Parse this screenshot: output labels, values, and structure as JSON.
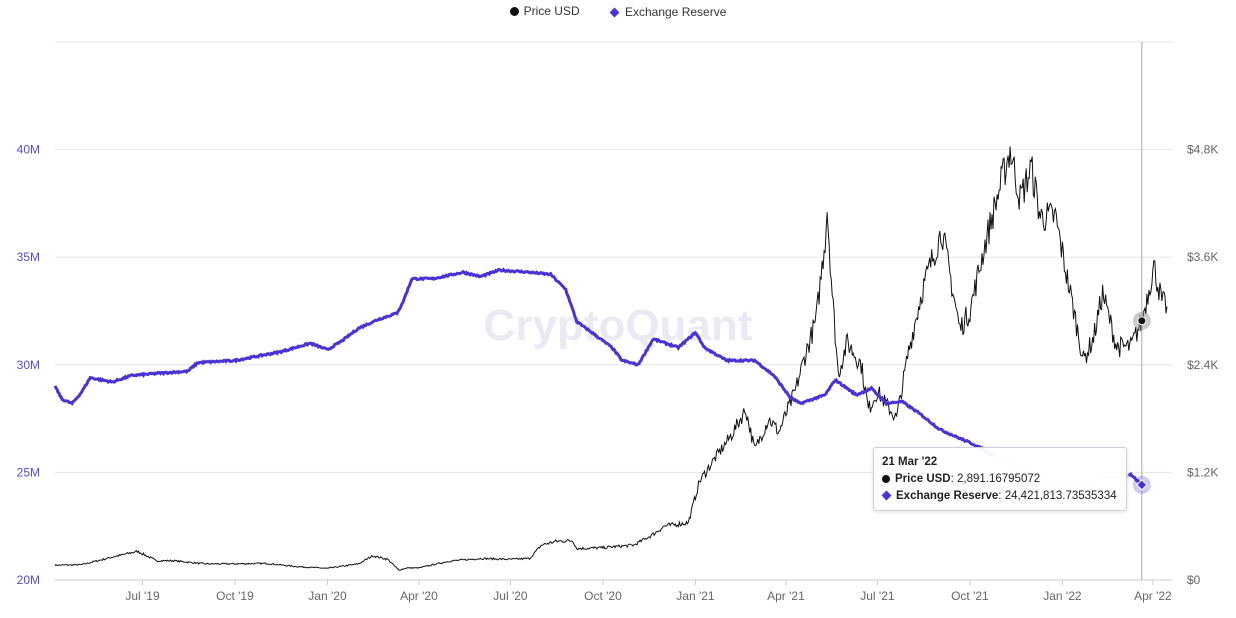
{
  "legend": {
    "price_label": "Price USD",
    "reserve_label": "Exchange Reserve"
  },
  "watermark": "CryptoQuant",
  "tooltip": {
    "date": "21 Mar '22",
    "price_label": "Price USD",
    "price_value": "2,891.16795072",
    "reserve_label": "Exchange Reserve",
    "reserve_value": "24,421,813.73535334"
  },
  "colors": {
    "price": "#111111",
    "reserve": "#4a33d6",
    "left_axis_text": "#5b4bd6",
    "grid": "#e6e6e6"
  },
  "chart_data": {
    "type": "line",
    "x_ticks": [
      "Jul '19",
      "Oct '19",
      "Jan '20",
      "Apr '20",
      "Jul '20",
      "Oct '20",
      "Jan '21",
      "Apr '21",
      "Jul '21",
      "Oct '21",
      "Jan '22",
      "Apr '22"
    ],
    "y_left_ticks": [
      "20M",
      "25M",
      "30M",
      "35M",
      "40M"
    ],
    "y_right_ticks": [
      "$0",
      "$1.2K",
      "$2.4K",
      "$3.6K",
      "$4.8K"
    ],
    "y_left_range": [
      20000000,
      45000000
    ],
    "y_right_range": [
      0,
      6000
    ],
    "x_range": [
      "2019-04-05",
      "2022-04-20"
    ],
    "grid": true,
    "legend_position": "top-center",
    "series": [
      {
        "name": "Price USD",
        "axis": "right",
        "points": [
          [
            "2019-04-05",
            165
          ],
          [
            "2019-05-01",
            170
          ],
          [
            "2019-06-01",
            255
          ],
          [
            "2019-06-26",
            320
          ],
          [
            "2019-07-15",
            215
          ],
          [
            "2019-08-01",
            215
          ],
          [
            "2019-09-01",
            180
          ],
          [
            "2019-10-01",
            180
          ],
          [
            "2019-11-01",
            185
          ],
          [
            "2019-12-01",
            150
          ],
          [
            "2020-01-01",
            130
          ],
          [
            "2020-02-01",
            180
          ],
          [
            "2020-02-15",
            270
          ],
          [
            "2020-03-01",
            230
          ],
          [
            "2020-03-12",
            110
          ],
          [
            "2020-03-20",
            135
          ],
          [
            "2020-04-01",
            135
          ],
          [
            "2020-05-01",
            210
          ],
          [
            "2020-06-01",
            240
          ],
          [
            "2020-07-01",
            230
          ],
          [
            "2020-07-20",
            240
          ],
          [
            "2020-08-01",
            390
          ],
          [
            "2020-08-15",
            430
          ],
          [
            "2020-09-01",
            440
          ],
          [
            "2020-09-05",
            350
          ],
          [
            "2020-10-01",
            360
          ],
          [
            "2020-11-01",
            390
          ],
          [
            "2020-11-20",
            510
          ],
          [
            "2020-12-01",
            600
          ],
          [
            "2020-12-25",
            640
          ],
          [
            "2021-01-05",
            1100
          ],
          [
            "2021-01-20",
            1350
          ],
          [
            "2021-02-05",
            1600
          ],
          [
            "2021-02-20",
            1900
          ],
          [
            "2021-03-01",
            1450
          ],
          [
            "2021-03-15",
            1800
          ],
          [
            "2021-03-25",
            1650
          ],
          [
            "2021-04-10",
            2100
          ],
          [
            "2021-04-20",
            2500
          ],
          [
            "2021-05-01",
            2900
          ],
          [
            "2021-05-10",
            3800
          ],
          [
            "2021-05-12",
            4150
          ],
          [
            "2021-05-17",
            3200
          ],
          [
            "2021-05-23",
            2300
          ],
          [
            "2021-06-01",
            2650
          ],
          [
            "2021-06-15",
            2400
          ],
          [
            "2021-06-22",
            1900
          ],
          [
            "2021-07-01",
            2100
          ],
          [
            "2021-07-20",
            1800
          ],
          [
            "2021-08-01",
            2550
          ],
          [
            "2021-08-15",
            3250
          ],
          [
            "2021-09-03",
            3900
          ],
          [
            "2021-09-21",
            2800
          ],
          [
            "2021-10-01",
            3000
          ],
          [
            "2021-10-15",
            3700
          ],
          [
            "2021-10-29",
            4300
          ],
          [
            "2021-11-10",
            4800
          ],
          [
            "2021-11-20",
            4250
          ],
          [
            "2021-12-01",
            4600
          ],
          [
            "2021-12-10",
            4050
          ],
          [
            "2021-12-25",
            4050
          ],
          [
            "2022-01-07",
            3300
          ],
          [
            "2022-01-22",
            2450
          ],
          [
            "2022-02-01",
            2700
          ],
          [
            "2022-02-10",
            3200
          ],
          [
            "2022-02-24",
            2600
          ],
          [
            "2022-03-10",
            2600
          ],
          [
            "2022-03-21",
            2891
          ],
          [
            "2022-04-02",
            3500
          ],
          [
            "2022-04-10",
            3100
          ],
          [
            "2022-04-15",
            3050
          ]
        ]
      },
      {
        "name": "Exchange Reserve",
        "axis": "left",
        "points": [
          [
            "2019-04-05",
            29.0
          ],
          [
            "2019-04-12",
            28.4
          ],
          [
            "2019-04-22",
            28.2
          ],
          [
            "2019-05-01",
            28.7
          ],
          [
            "2019-05-10",
            29.4
          ],
          [
            "2019-06-01",
            29.2
          ],
          [
            "2019-06-20",
            29.5
          ],
          [
            "2019-07-15",
            29.6
          ],
          [
            "2019-08-15",
            29.7
          ],
          [
            "2019-08-25",
            30.1
          ],
          [
            "2019-10-01",
            30.2
          ],
          [
            "2019-11-15",
            30.6
          ],
          [
            "2019-12-15",
            31.0
          ],
          [
            "2020-01-01",
            30.7
          ],
          [
            "2020-01-15",
            31.1
          ],
          [
            "2020-02-01",
            31.7
          ],
          [
            "2020-02-20",
            32.1
          ],
          [
            "2020-03-10",
            32.4
          ],
          [
            "2020-03-15",
            32.8
          ],
          [
            "2020-03-25",
            34.0
          ],
          [
            "2020-04-15",
            34.0
          ],
          [
            "2020-05-15",
            34.3
          ],
          [
            "2020-06-01",
            34.1
          ],
          [
            "2020-06-20",
            34.4
          ],
          [
            "2020-07-20",
            34.3
          ],
          [
            "2020-08-10",
            34.2
          ],
          [
            "2020-08-25",
            33.5
          ],
          [
            "2020-09-05",
            32.0
          ],
          [
            "2020-09-20",
            31.5
          ],
          [
            "2020-10-10",
            30.8
          ],
          [
            "2020-10-20",
            30.2
          ],
          [
            "2020-11-05",
            30.0
          ],
          [
            "2020-11-20",
            31.2
          ],
          [
            "2020-12-15",
            30.8
          ],
          [
            "2021-01-01",
            31.5
          ],
          [
            "2021-01-10",
            30.8
          ],
          [
            "2021-02-01",
            30.2
          ],
          [
            "2021-03-01",
            30.2
          ],
          [
            "2021-03-20",
            29.5
          ],
          [
            "2021-04-05",
            28.5
          ],
          [
            "2021-04-15",
            28.2
          ],
          [
            "2021-05-10",
            28.6
          ],
          [
            "2021-05-20",
            29.3
          ],
          [
            "2021-06-10",
            28.6
          ],
          [
            "2021-06-25",
            28.9
          ],
          [
            "2021-07-10",
            28.2
          ],
          [
            "2021-07-25",
            28.3
          ],
          [
            "2021-08-10",
            27.8
          ],
          [
            "2021-09-01",
            27.0
          ],
          [
            "2021-09-20",
            26.6
          ],
          [
            "2021-10-05",
            26.3
          ],
          [
            "2021-10-20",
            25.9
          ],
          [
            "2021-11-15",
            25.3
          ],
          [
            "2021-12-10",
            24.7
          ],
          [
            "2022-01-01",
            24.5
          ],
          [
            "2022-01-20",
            24.3
          ],
          [
            "2022-02-10",
            24.8
          ],
          [
            "2022-03-01",
            24.7
          ],
          [
            "2022-03-10",
            24.9
          ],
          [
            "2022-03-21",
            24.42
          ]
        ]
      }
    ],
    "highlight_date": "2022-03-21"
  }
}
